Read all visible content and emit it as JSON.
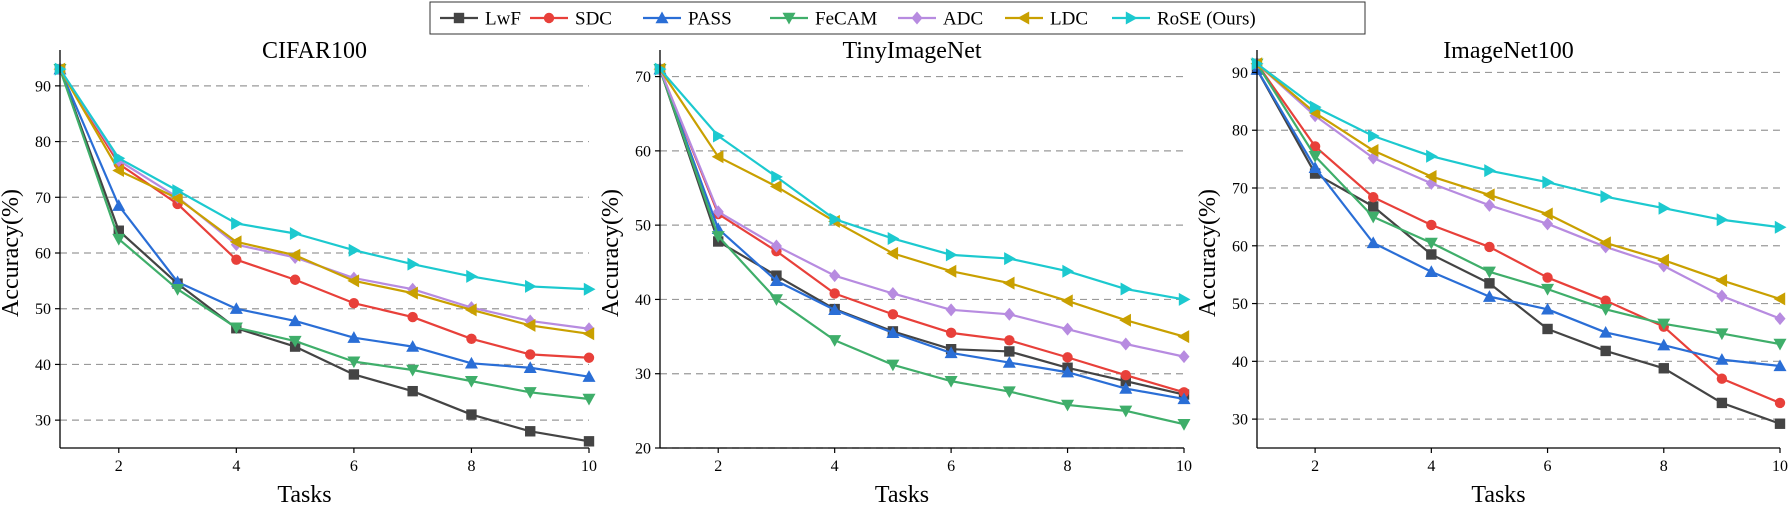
{
  "legend": {
    "items": [
      {
        "label": "LwF",
        "color": "#444444",
        "marker": "square"
      },
      {
        "label": "SDC",
        "color": "#e8403a",
        "marker": "circle"
      },
      {
        "label": "PASS",
        "color": "#2a6ed6",
        "marker": "triangle-up"
      },
      {
        "label": "FeCAM",
        "color": "#3fae6a",
        "marker": "triangle-down"
      },
      {
        "label": "ADC",
        "color": "#b78be0",
        "marker": "diamond"
      },
      {
        "label": "LDC",
        "color": "#c9a000",
        "marker": "triangle-left"
      },
      {
        "label": "RoSE (Ours)",
        "color": "#1cc9cf",
        "marker": "triangle-right"
      }
    ]
  },
  "chart_data": [
    {
      "type": "line",
      "title": "CIFAR100",
      "xlabel": "Tasks",
      "ylabel": "Accuracy(%)",
      "x": [
        1,
        2,
        3,
        4,
        5,
        6,
        7,
        8,
        9,
        10
      ],
      "xlim": [
        1,
        10
      ],
      "ylim": [
        25,
        95
      ],
      "xticks": [
        2,
        4,
        6,
        8,
        10
      ],
      "yticks": [
        30,
        40,
        50,
        60,
        70,
        80,
        90
      ],
      "grid": "horizontal-dashed",
      "series": [
        {
          "name": "LwF",
          "values": [
            93.0,
            64.0,
            54.5,
            46.5,
            43.2,
            38.2,
            35.2,
            31.0,
            28.0,
            26.2
          ]
        },
        {
          "name": "SDC",
          "values": [
            93.0,
            76.0,
            68.8,
            58.8,
            55.2,
            51.0,
            48.5,
            44.6,
            41.8,
            41.2
          ]
        },
        {
          "name": "PASS",
          "values": [
            93.0,
            68.5,
            54.8,
            50.0,
            47.8,
            44.8,
            43.2,
            40.2,
            39.4,
            37.8
          ]
        },
        {
          "name": "FeCAM",
          "values": [
            93.0,
            62.5,
            53.5,
            46.6,
            44.2,
            40.5,
            39.0,
            37.0,
            35.0,
            33.8
          ]
        },
        {
          "name": "ADC",
          "values": [
            93.0,
            76.6,
            70.0,
            61.5,
            59.2,
            55.5,
            53.5,
            50.2,
            47.8,
            46.4
          ]
        },
        {
          "name": "LDC",
          "values": [
            93.0,
            74.8,
            69.8,
            62.0,
            59.6,
            55.0,
            52.8,
            49.8,
            47.0,
            45.5
          ]
        },
        {
          "name": "RoSE (Ours)",
          "values": [
            93.0,
            77.0,
            71.2,
            65.3,
            63.5,
            60.5,
            58.0,
            55.8,
            54.0,
            53.5
          ]
        }
      ]
    },
    {
      "type": "line",
      "title": "TinyImageNet",
      "xlabel": "Tasks",
      "ylabel": "Accuracy(%)",
      "x": [
        1,
        2,
        3,
        4,
        5,
        6,
        7,
        8,
        9,
        10
      ],
      "xlim": [
        1,
        10
      ],
      "ylim": [
        20,
        72.5
      ],
      "xticks": [
        2,
        4,
        6,
        8,
        10
      ],
      "yticks": [
        20,
        30,
        40,
        50,
        60,
        70
      ],
      "grid": "horizontal-dashed",
      "series": [
        {
          "name": "LwF",
          "values": [
            71.0,
            47.8,
            43.2,
            38.7,
            35.7,
            33.3,
            33.0,
            30.8,
            29.0,
            27.2
          ]
        },
        {
          "name": "SDC",
          "values": [
            71.0,
            51.5,
            46.5,
            40.8,
            38.0,
            35.5,
            34.5,
            32.2,
            29.8,
            27.5
          ]
        },
        {
          "name": "PASS",
          "values": [
            71.0,
            49.5,
            42.5,
            38.6,
            35.5,
            32.8,
            31.5,
            30.2,
            28.0,
            26.6
          ]
        },
        {
          "name": "FeCAM",
          "values": [
            71.0,
            48.5,
            40.0,
            34.5,
            31.2,
            29.0,
            27.6,
            25.8,
            25.0,
            23.2
          ]
        },
        {
          "name": "ADC",
          "values": [
            71.0,
            51.8,
            47.2,
            43.2,
            40.8,
            38.6,
            38.0,
            36.0,
            34.0,
            32.3
          ]
        },
        {
          "name": "LDC",
          "values": [
            71.0,
            59.2,
            55.2,
            50.5,
            46.2,
            43.8,
            42.2,
            39.8,
            37.2,
            35.0
          ]
        },
        {
          "name": "RoSE (Ours)",
          "values": [
            71.0,
            62.0,
            56.5,
            50.8,
            48.2,
            46.0,
            45.5,
            43.8,
            41.4,
            40.0
          ]
        }
      ]
    },
    {
      "type": "line",
      "title": "ImageNet100",
      "xlabel": "Tasks",
      "ylabel": "Accuracy(%)",
      "x": [
        1,
        2,
        3,
        4,
        5,
        6,
        7,
        8,
        9,
        10
      ],
      "xlim": [
        1,
        10
      ],
      "ylim": [
        25,
        92.5
      ],
      "xticks": [
        2,
        4,
        6,
        8,
        10
      ],
      "yticks": [
        30,
        40,
        50,
        60,
        70,
        80,
        90
      ],
      "grid": "horizontal-dashed",
      "series": [
        {
          "name": "LwF",
          "values": [
            90.5,
            72.5,
            66.8,
            58.5,
            53.5,
            45.6,
            41.8,
            38.8,
            32.8,
            29.2
          ]
        },
        {
          "name": "SDC",
          "values": [
            91.5,
            77.2,
            68.4,
            63.6,
            59.8,
            54.5,
            50.5,
            46.0,
            37.0,
            32.8
          ]
        },
        {
          "name": "PASS",
          "values": [
            90.5,
            73.5,
            60.5,
            55.5,
            51.2,
            49.0,
            45.0,
            42.8,
            40.3,
            39.2
          ]
        },
        {
          "name": "FeCAM",
          "values": [
            91.5,
            75.5,
            65.0,
            60.5,
            55.5,
            52.5,
            49.0,
            46.5,
            44.8,
            43.0
          ]
        },
        {
          "name": "ADC",
          "values": [
            91.5,
            82.5,
            75.2,
            70.8,
            67.0,
            63.8,
            59.8,
            56.5,
            51.3,
            47.4
          ]
        },
        {
          "name": "LDC",
          "values": [
            91.5,
            83.0,
            76.5,
            72.0,
            68.8,
            65.5,
            60.5,
            57.5,
            54.0,
            50.8
          ]
        },
        {
          "name": "RoSE (Ours)",
          "values": [
            91.5,
            84.0,
            79.0,
            75.5,
            73.0,
            71.0,
            68.5,
            66.5,
            64.5,
            63.2
          ]
        }
      ]
    }
  ]
}
